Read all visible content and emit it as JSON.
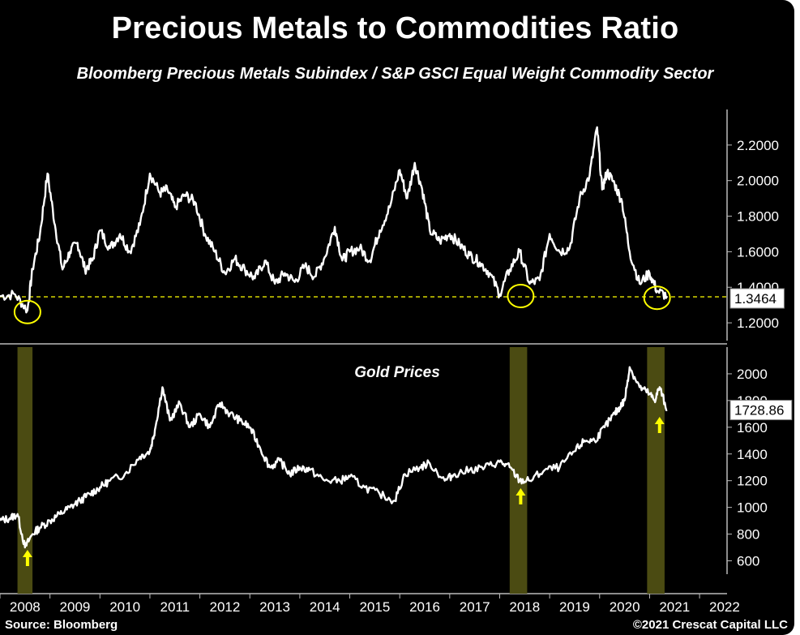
{
  "title": "Precious Metals to Commodities Ratio",
  "subtitle": "Bloomberg Precious Metals Subindex / S&P GSCI Equal Weight Commodity Sector",
  "source": "Source: Bloomberg",
  "copyright": "©2021 Crescat Capital LLC",
  "colors": {
    "background": "#000000",
    "line": "#ffffff",
    "highlight": "#ffff00",
    "band": "#4b4b12"
  },
  "chart_data": [
    {
      "type": "line",
      "title": "",
      "ylim": [
        1.1,
        2.4
      ],
      "y_ticks": [
        "1.2000",
        "1.4000",
        "1.6000",
        "1.8000",
        "2.0000",
        "2.2000"
      ],
      "current_value_label": "1.3464",
      "reference_line": 1.3464,
      "series": [
        {
          "x": [
            2008.0,
            2008.3,
            2008.55,
            2008.65,
            2008.8,
            2008.95,
            2009.1,
            2009.25,
            2009.4,
            2009.55,
            2009.7,
            2009.85,
            2010.0,
            2010.2,
            2010.4,
            2010.6,
            2010.8,
            2011.0,
            2011.2,
            2011.35,
            2011.5,
            2011.7,
            2011.9,
            2012.1,
            2012.3,
            2012.5,
            2012.7,
            2012.9,
            2013.1,
            2013.3,
            2013.5,
            2013.7,
            2013.9,
            2014.1,
            2014.3,
            2014.5,
            2014.7,
            2014.85,
            2015.0,
            2015.2,
            2015.4,
            2015.6,
            2015.8,
            2016.0,
            2016.15,
            2016.3,
            2016.45,
            2016.6,
            2016.8,
            2017.0,
            2017.2,
            2017.4,
            2017.6,
            2017.8,
            2018.0,
            2018.2,
            2018.4,
            2018.6,
            2018.8,
            2019.0,
            2019.2,
            2019.4,
            2019.6,
            2019.8,
            2019.95,
            2020.05,
            2020.15,
            2020.3,
            2020.45,
            2020.6,
            2020.8,
            2021.0,
            2021.15,
            2021.35
          ],
          "values": [
            1.35,
            1.36,
            1.27,
            1.5,
            1.7,
            2.04,
            1.75,
            1.5,
            1.6,
            1.65,
            1.5,
            1.55,
            1.72,
            1.62,
            1.7,
            1.6,
            1.75,
            2.04,
            1.93,
            1.95,
            1.85,
            1.92,
            1.88,
            1.7,
            1.6,
            1.48,
            1.56,
            1.5,
            1.45,
            1.55,
            1.42,
            1.48,
            1.43,
            1.52,
            1.46,
            1.57,
            1.74,
            1.55,
            1.6,
            1.62,
            1.55,
            1.72,
            1.85,
            2.06,
            1.9,
            2.1,
            1.95,
            1.72,
            1.66,
            1.7,
            1.64,
            1.58,
            1.54,
            1.48,
            1.36,
            1.5,
            1.6,
            1.42,
            1.44,
            1.7,
            1.6,
            1.62,
            1.9,
            2.03,
            2.3,
            1.95,
            2.05,
            1.98,
            1.88,
            1.6,
            1.42,
            1.48,
            1.38,
            1.35
          ]
        }
      ],
      "markers": [
        {
          "x": 2008.55,
          "y": 1.27
        },
        {
          "x": 2018.42,
          "y": 1.36
        },
        {
          "x": 2021.15,
          "y": 1.35
        }
      ]
    },
    {
      "type": "line",
      "title": "Gold Prices",
      "ylim": [
        500,
        2200
      ],
      "y_ticks": [
        "600",
        "800",
        "1000",
        "1200",
        "1400",
        "1600",
        "1800",
        "2000"
      ],
      "current_value_label": "1728.86",
      "x_tick_labels": [
        "2008",
        "2009",
        "2010",
        "2011",
        "2012",
        "2013",
        "2014",
        "2015",
        "2016",
        "2017",
        "2018",
        "2019",
        "2020",
        "2021",
        "2022"
      ],
      "highlight_bands": [
        [
          2008.35,
          2008.65
        ],
        [
          2018.2,
          2018.55
        ],
        [
          2020.95,
          2021.3
        ]
      ],
      "arrows": [
        2008.55,
        2018.42,
        2021.2
      ],
      "series": [
        {
          "x": [
            2008.0,
            2008.2,
            2008.35,
            2008.5,
            2008.65,
            2008.8,
            2009.0,
            2009.2,
            2009.4,
            2009.6,
            2009.8,
            2010.0,
            2010.2,
            2010.5,
            2010.8,
            2011.0,
            2011.1,
            2011.25,
            2011.4,
            2011.6,
            2011.8,
            2012.0,
            2012.2,
            2012.4,
            2012.6,
            2012.8,
            2013.0,
            2013.2,
            2013.4,
            2013.6,
            2013.8,
            2014.0,
            2014.2,
            2014.5,
            2014.8,
            2015.0,
            2015.3,
            2015.6,
            2015.9,
            2016.1,
            2016.4,
            2016.6,
            2016.9,
            2017.1,
            2017.4,
            2017.7,
            2018.0,
            2018.2,
            2018.4,
            2018.6,
            2018.9,
            2019.2,
            2019.5,
            2019.7,
            2019.9,
            2020.1,
            2020.3,
            2020.4,
            2020.5,
            2020.6,
            2020.8,
            2021.0,
            2021.1,
            2021.2,
            2021.35
          ],
          "values": [
            900,
            920,
            950,
            700,
            800,
            850,
            900,
            950,
            1000,
            1050,
            1100,
            1150,
            1200,
            1250,
            1380,
            1420,
            1580,
            1900,
            1650,
            1780,
            1600,
            1700,
            1600,
            1780,
            1700,
            1650,
            1600,
            1450,
            1300,
            1350,
            1250,
            1300,
            1280,
            1200,
            1200,
            1230,
            1150,
            1100,
            1050,
            1250,
            1300,
            1330,
            1200,
            1250,
            1280,
            1300,
            1340,
            1300,
            1200,
            1200,
            1280,
            1300,
            1420,
            1500,
            1500,
            1600,
            1700,
            1750,
            1800,
            2050,
            1900,
            1850,
            1800,
            1900,
            1730
          ]
        }
      ]
    }
  ]
}
